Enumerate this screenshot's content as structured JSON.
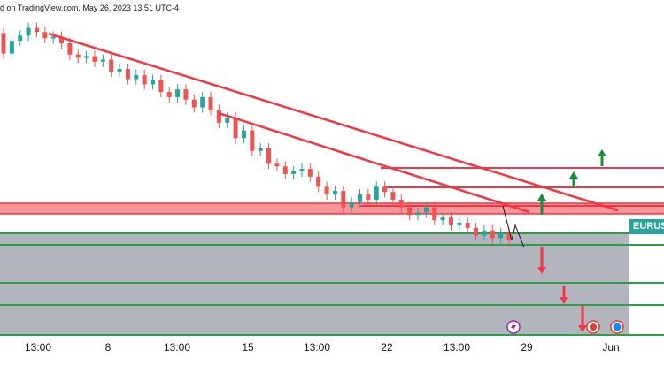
{
  "header": {
    "text": "d on TradingView.com, May 26, 2023 13:51 UTC-4"
  },
  "symbol_label": "EURUSD",
  "colors": {
    "bull": "#26a69a",
    "bear": "#ef5350",
    "trendline": "#f23645",
    "support_zone": "#f77c80",
    "green_line": "#2e9e4a",
    "target_area": "#b2b5be",
    "up_arrow": "#1b8a3c",
    "down_arrow": "#f23645"
  },
  "events": {
    "lightning-icon": "#9c27b0",
    "us-flag-icon": "#e53935",
    "eu-flag-icon": "#1e88e5"
  },
  "chart_data": {
    "type": "candlestick",
    "x_tick_labels": [
      "13:00",
      "8",
      "13:00",
      "15",
      "13:00",
      "22",
      "13:00",
      "29",
      "Jun"
    ],
    "series_close_levels": [
      0.3,
      0.55,
      0.65,
      0.8,
      0.72,
      0.6,
      0.63,
      0.5,
      0.28,
      0.22,
      0.25,
      0.14,
      0.18,
      -0.05,
      0.0,
      -0.2,
      -0.12,
      -0.3,
      -0.22,
      -0.45,
      -0.55,
      -0.4,
      -0.6,
      -0.75,
      -0.55,
      -0.8,
      -1.05,
      -0.95,
      -1.35,
      -1.2,
      -1.6,
      -1.55,
      -1.85,
      -1.9,
      -2.05,
      -2.0,
      -1.95,
      -2.1,
      -2.3,
      -2.45,
      -2.38,
      -2.7,
      -2.6,
      -2.45,
      -2.55,
      -2.3,
      -2.4,
      -2.55,
      -2.7,
      -2.85,
      -2.8,
      -2.7,
      -2.95,
      -2.9,
      -3.05,
      -3.0,
      -3.1,
      -3.25,
      -3.15,
      -3.3,
      -3.2,
      -3.35
    ],
    "annotations": {
      "trendlines": 2,
      "resistance_lines": 3,
      "support_zone": 1,
      "target_lines": 5,
      "up_arrows": 3,
      "down_arrows": 4
    }
  }
}
